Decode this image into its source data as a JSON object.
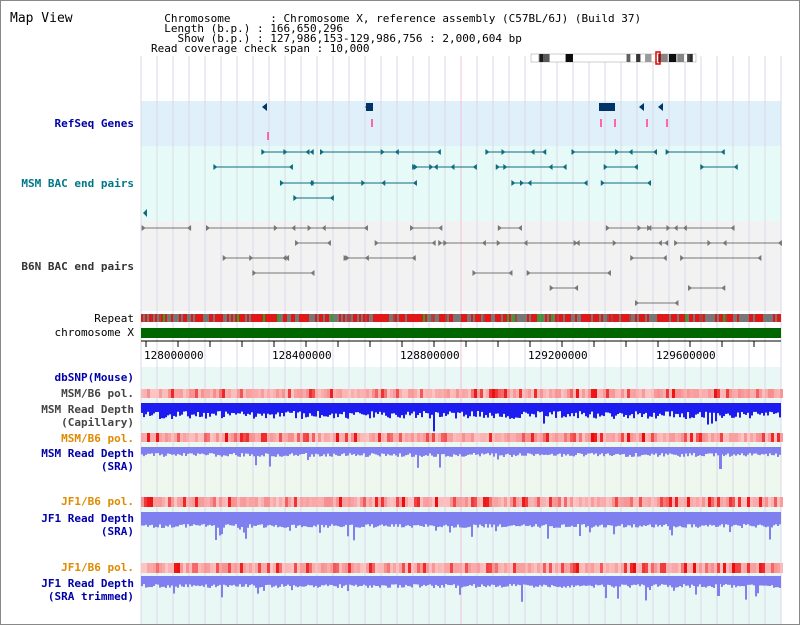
{
  "app": {
    "title": "Map View"
  },
  "header": {
    "lines": [
      "  Chromosome      : Chromosome X, reference assembly (C57BL/6J) (Build 37)",
      "  Length (b.p.) : 166,650,296",
      "    Show (b.p.) : 127,986,153-129,986,756 : 2,000,604 bp",
      "Read coverage check span : 10,000"
    ]
  },
  "colors": {
    "refseq_band": "#dff0fa",
    "bac_band": "#e6fbf8",
    "b6n_band": "#f2f2f2",
    "chromosome_bar": "#006600",
    "capillary_depth": "#1c1cf0",
    "sra_depth": "#7f7ff0",
    "pol_low": "#ffbcbc",
    "pol_high": "#e40000",
    "refseq_label": "#0000aa",
    "msm_bac_label": "#007788",
    "b6n_bac_label": "#333333",
    "orange_label": "#e08a00"
  },
  "tracks": {
    "refseq": "RefSeq Genes",
    "msm_bac": "MSM BAC end pairs",
    "b6n_bac": "B6N BAC end pairs",
    "repeat": "Repeat",
    "chromosome": "chromosome X",
    "dbsnp": "dbSNP(Mouse)",
    "msm_b6_pol_1": "MSM/B6 pol.",
    "msm_depth_cap_1": "MSM Read Depth",
    "msm_depth_cap_2": "(Capillary)",
    "msm_b6_pol_2": "MSM/B6 pol.",
    "msm_depth_sra_1": "MSM Read Depth",
    "msm_depth_sra_2": "(SRA)",
    "jf1_b6_pol_1": "JF1/B6 pol.",
    "jf1_depth_sra_1": "JF1 Read Depth",
    "jf1_depth_sra_2": "(SRA)",
    "jf1_b6_pol_2": "JF1/B6 pol.",
    "jf1_depth_trim_1": "JF1 Read Depth",
    "jf1_depth_trim_2": "(SRA trimmed)"
  },
  "ruler": {
    "ticks": [
      "128000000",
      "128400000",
      "128800000",
      "129200000",
      "129600000"
    ]
  }
}
